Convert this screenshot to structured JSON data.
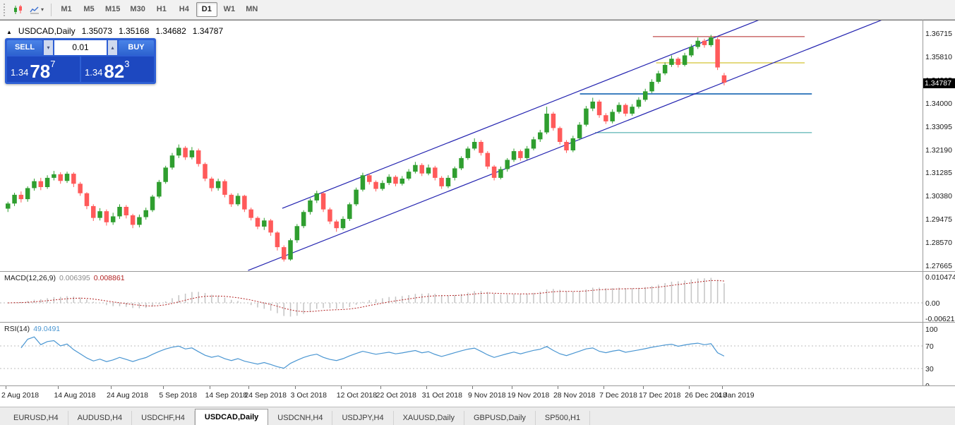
{
  "toolbar": {
    "dropdown_glyph": "▾",
    "timeframes": [
      {
        "label": "M1",
        "active": false
      },
      {
        "label": "M5",
        "active": false
      },
      {
        "label": "M15",
        "active": false
      },
      {
        "label": "M30",
        "active": false
      },
      {
        "label": "H1",
        "active": false
      },
      {
        "label": "H4",
        "active": false
      },
      {
        "label": "D1",
        "active": true
      },
      {
        "label": "W1",
        "active": false
      },
      {
        "label": "MN",
        "active": false
      }
    ]
  },
  "chart": {
    "marker": "▲",
    "symbol": "USDCAD,Daily",
    "open": "1.35073",
    "high": "1.35168",
    "low": "1.34682",
    "close": "1.34787"
  },
  "trade_panel": {
    "sell_label": "SELL",
    "buy_label": "BUY",
    "volume": "0.01",
    "down_glyph": "▾",
    "up_glyph": "▴",
    "sell_price": {
      "prefix": "1.34",
      "big": "78",
      "sup": "7"
    },
    "buy_price": {
      "prefix": "1.34",
      "big": "82",
      "sup": "3"
    }
  },
  "price_axis": {
    "values": [
      1.36715,
      1.3581,
      1.34905,
      1.34,
      1.33095,
      1.3219,
      1.31285,
      1.3038,
      1.29475,
      1.2857,
      1.27665
    ],
    "current": "1.34787",
    "current_bg": "#000000"
  },
  "macd": {
    "label": "MACD(12,26,9)",
    "value1": "0.006395",
    "value2": "0.008861",
    "axis_top": "0.010474",
    "axis_zero": "0.00",
    "axis_bottom": "-0.006218",
    "hist_color": "#c4c4c4",
    "signal_color": "#b22222"
  },
  "rsi": {
    "label": "RSI(14)",
    "value": "49.0491",
    "axis": [
      100,
      70,
      30,
      0
    ],
    "levels": [
      70,
      30
    ],
    "line_color": "#4a96d2"
  },
  "tabs": [
    {
      "label": "EURUSD,H4",
      "active": false
    },
    {
      "label": "AUDUSD,H4",
      "active": false
    },
    {
      "label": "USDCHF,H4",
      "active": false
    },
    {
      "label": "USDCAD,Daily",
      "active": true
    },
    {
      "label": "USDCNH,H4",
      "active": false
    },
    {
      "label": "USDJPY,H4",
      "active": false
    },
    {
      "label": "XAUUSD,Daily",
      "active": false
    },
    {
      "label": "GBPUSD,Daily",
      "active": false
    },
    {
      "label": "SP500,H1",
      "active": false
    }
  ],
  "chart_data": {
    "type": "candlestick",
    "symbol": "USDCAD",
    "timeframe": "Daily",
    "up_color": "#2f9e2f",
    "down_color": "#ff5a5a",
    "y_min": 1.2747,
    "y_max": 1.3718,
    "candles": [
      [
        1.2988,
        1.3015,
        1.2975,
        1.3008
      ],
      [
        1.3008,
        1.305,
        1.2998,
        1.3042
      ],
      [
        1.3042,
        1.3055,
        1.3012,
        1.3025
      ],
      [
        1.3025,
        1.3075,
        1.3015,
        1.3068
      ],
      [
        1.3068,
        1.3105,
        1.3058,
        1.3095
      ],
      [
        1.3095,
        1.3108,
        1.306,
        1.3072
      ],
      [
        1.3072,
        1.3118,
        1.3065,
        1.3108
      ],
      [
        1.3108,
        1.3135,
        1.3098,
        1.3122
      ],
      [
        1.3122,
        1.313,
        1.3085,
        1.3096
      ],
      [
        1.3096,
        1.3132,
        1.3088,
        1.3124
      ],
      [
        1.3124,
        1.313,
        1.3072,
        1.3085
      ],
      [
        1.3085,
        1.3092,
        1.3038,
        1.3048
      ],
      [
        1.3048,
        1.3052,
        1.2986,
        1.2998
      ],
      [
        1.2998,
        1.3005,
        1.294,
        1.2952
      ],
      [
        1.2952,
        1.299,
        1.2942,
        1.2978
      ],
      [
        1.2978,
        1.2985,
        1.2922,
        1.2935
      ],
      [
        1.2935,
        1.2972,
        1.2925,
        1.2958
      ],
      [
        1.2958,
        1.3005,
        1.2948,
        1.2995
      ],
      [
        1.2995,
        1.3002,
        1.295,
        1.2962
      ],
      [
        1.2962,
        1.2968,
        1.2912,
        1.2925
      ],
      [
        1.2925,
        1.2965,
        1.2915,
        1.2955
      ],
      [
        1.2955,
        1.2992,
        1.2945,
        1.2982
      ],
      [
        1.2982,
        1.3042,
        1.2975,
        1.3035
      ],
      [
        1.3035,
        1.31,
        1.3028,
        1.3092
      ],
      [
        1.3092,
        1.3155,
        1.3085,
        1.3148
      ],
      [
        1.3148,
        1.3205,
        1.314,
        1.3195
      ],
      [
        1.3195,
        1.3238,
        1.3185,
        1.3225
      ],
      [
        1.3225,
        1.3232,
        1.3178,
        1.3188
      ],
      [
        1.3188,
        1.3228,
        1.318,
        1.3215
      ],
      [
        1.3215,
        1.3222,
        1.3152,
        1.3162
      ],
      [
        1.3162,
        1.3168,
        1.3095,
        1.3105
      ],
      [
        1.3105,
        1.3112,
        1.3055,
        1.3068
      ],
      [
        1.3068,
        1.3105,
        1.3058,
        1.3095
      ],
      [
        1.3095,
        1.3102,
        1.3032,
        1.3042
      ],
      [
        1.3042,
        1.3048,
        1.2995,
        1.3005
      ],
      [
        1.3005,
        1.3048,
        1.2998,
        1.3038
      ],
      [
        1.3038,
        1.3042,
        1.2975,
        1.2985
      ],
      [
        1.2985,
        1.2992,
        1.2942,
        1.2952
      ],
      [
        1.2952,
        1.2958,
        1.2908,
        1.2918
      ],
      [
        1.2918,
        1.2952,
        1.2905,
        1.2942
      ],
      [
        1.2942,
        1.2948,
        1.2882,
        1.2895
      ],
      [
        1.2895,
        1.29,
        1.2825,
        1.2838
      ],
      [
        1.2838,
        1.2845,
        1.2782,
        1.279
      ],
      [
        1.279,
        1.2872,
        1.2785,
        1.2865
      ],
      [
        1.2865,
        1.2928,
        1.2855,
        1.292
      ],
      [
        1.292,
        1.2982,
        1.2912,
        1.2975
      ],
      [
        1.2975,
        1.3028,
        1.2965,
        1.302
      ],
      [
        1.302,
        1.3058,
        1.301,
        1.3048
      ],
      [
        1.3048,
        1.3052,
        1.2975,
        1.2985
      ],
      [
        1.2985,
        1.2992,
        1.2928,
        1.2938
      ],
      [
        1.2938,
        1.2945,
        1.2898,
        1.2912
      ],
      [
        1.2912,
        1.2958,
        1.2905,
        1.2948
      ],
      [
        1.2948,
        1.3012,
        1.294,
        1.3005
      ],
      [
        1.3005,
        1.307,
        1.2998,
        1.3062
      ],
      [
        1.3062,
        1.3128,
        1.3055,
        1.3118
      ],
      [
        1.3118,
        1.3125,
        1.3082,
        1.3092
      ],
      [
        1.3092,
        1.3098,
        1.3055,
        1.3065
      ],
      [
        1.3065,
        1.3098,
        1.3058,
        1.3088
      ],
      [
        1.3088,
        1.3122,
        1.308,
        1.3112
      ],
      [
        1.3112,
        1.3118,
        1.3075,
        1.3085
      ],
      [
        1.3085,
        1.3115,
        1.3078,
        1.3105
      ],
      [
        1.3105,
        1.3142,
        1.3098,
        1.3132
      ],
      [
        1.3132,
        1.317,
        1.3125,
        1.3158
      ],
      [
        1.3158,
        1.3165,
        1.3115,
        1.3125
      ],
      [
        1.3125,
        1.316,
        1.3118,
        1.3148
      ],
      [
        1.3148,
        1.3155,
        1.3098,
        1.3108
      ],
      [
        1.3108,
        1.3115,
        1.3065,
        1.3075
      ],
      [
        1.3075,
        1.3118,
        1.3068,
        1.3108
      ],
      [
        1.3108,
        1.3152,
        1.3098,
        1.3145
      ],
      [
        1.3145,
        1.3192,
        1.3138,
        1.3185
      ],
      [
        1.3185,
        1.323,
        1.3178,
        1.3222
      ],
      [
        1.3222,
        1.3262,
        1.3215,
        1.3248
      ],
      [
        1.3248,
        1.3255,
        1.3195,
        1.3205
      ],
      [
        1.3205,
        1.3212,
        1.3142,
        1.3152
      ],
      [
        1.3152,
        1.3158,
        1.3098,
        1.3108
      ],
      [
        1.3108,
        1.3152,
        1.3102,
        1.3142
      ],
      [
        1.3142,
        1.3185,
        1.3132,
        1.3178
      ],
      [
        1.3178,
        1.3222,
        1.317,
        1.3212
      ],
      [
        1.3212,
        1.3218,
        1.3175,
        1.3185
      ],
      [
        1.3185,
        1.3232,
        1.3178,
        1.3222
      ],
      [
        1.3222,
        1.3268,
        1.3215,
        1.3258
      ],
      [
        1.3258,
        1.3295,
        1.3248,
        1.3285
      ],
      [
        1.3285,
        1.3385,
        1.3278,
        1.3358
      ],
      [
        1.3358,
        1.3365,
        1.3292,
        1.3302
      ],
      [
        1.3302,
        1.3308,
        1.3238,
        1.3248
      ],
      [
        1.3248,
        1.3255,
        1.3205,
        1.3215
      ],
      [
        1.3215,
        1.3272,
        1.3208,
        1.3262
      ],
      [
        1.3262,
        1.3325,
        1.3255,
        1.3315
      ],
      [
        1.3315,
        1.3388,
        1.3308,
        1.3378
      ],
      [
        1.3378,
        1.342,
        1.3368,
        1.3405
      ],
      [
        1.3405,
        1.3412,
        1.3342,
        1.3352
      ],
      [
        1.3352,
        1.336,
        1.3318,
        1.3328
      ],
      [
        1.3328,
        1.3375,
        1.332,
        1.3365
      ],
      [
        1.3365,
        1.3402,
        1.3358,
        1.3392
      ],
      [
        1.3392,
        1.3398,
        1.3348,
        1.3358
      ],
      [
        1.3358,
        1.3395,
        1.335,
        1.3385
      ],
      [
        1.3385,
        1.3422,
        1.3378,
        1.3412
      ],
      [
        1.3412,
        1.3455,
        1.3405,
        1.3445
      ],
      [
        1.3445,
        1.3492,
        1.3438,
        1.3482
      ],
      [
        1.3482,
        1.3525,
        1.3475,
        1.3515
      ],
      [
        1.3515,
        1.3558,
        1.3508,
        1.3548
      ],
      [
        1.3548,
        1.3585,
        1.354,
        1.3572
      ],
      [
        1.3572,
        1.3578,
        1.3538,
        1.3548
      ],
      [
        1.3548,
        1.3595,
        1.3542,
        1.3585
      ],
      [
        1.3585,
        1.3628,
        1.3578,
        1.3618
      ],
      [
        1.3618,
        1.3655,
        1.361,
        1.3642
      ],
      [
        1.3642,
        1.365,
        1.3615,
        1.3625
      ],
      [
        1.3625,
        1.3665,
        1.3618,
        1.3655
      ],
      [
        1.3648,
        1.3655,
        1.3528,
        1.3538
      ],
      [
        1.35073,
        1.35168,
        1.34682,
        1.34787
      ]
    ],
    "trendlines": [
      {
        "from": [
          36.9,
          1.27473
        ],
        "to": [
          133.4,
          1.37235
        ],
        "color": "#2323b0"
      },
      {
        "from": [
          42.1,
          1.29894
        ],
        "to": [
          114.7,
          1.37235
        ],
        "color": "#2323b0"
      }
    ],
    "hlines": [
      {
        "price": 1.3658,
        "from": 98.5,
        "to": 121.6,
        "color": "#b22222",
        "width": 1
      },
      {
        "price": 1.3556,
        "from": 99.0,
        "to": 121.6,
        "color": "#c8b400",
        "width": 1
      },
      {
        "price": 1.3435,
        "from": 87.4,
        "to": 122.7,
        "color": "#4080c0",
        "width": 2
      },
      {
        "price": 1.3284,
        "from": 89.7,
        "to": 122.7,
        "color": "#35a0a0",
        "width": 1
      }
    ],
    "time_labels": [
      [
        "2 Aug 2018",
        0
      ],
      [
        "14 Aug 2018",
        8
      ],
      [
        "24 Aug 2018",
        16
      ],
      [
        "5 Sep 2018",
        24
      ],
      [
        "14 Sep 2018",
        31
      ],
      [
        "24 Sep 2018",
        37
      ],
      [
        "3 Oct 2018",
        44
      ],
      [
        "12 Oct 2018",
        51
      ],
      [
        "22 Oct 2018",
        57
      ],
      [
        "31 Oct 2018",
        64
      ],
      [
        "9 Nov 2018",
        71
      ],
      [
        "19 Nov 2018",
        77
      ],
      [
        "28 Nov 2018",
        84
      ],
      [
        "7 Dec 2018",
        91
      ],
      [
        "17 Dec 2018",
        97
      ],
      [
        "26 Dec 2018",
        104
      ],
      [
        "4 Jan 2019",
        109
      ]
    ]
  }
}
